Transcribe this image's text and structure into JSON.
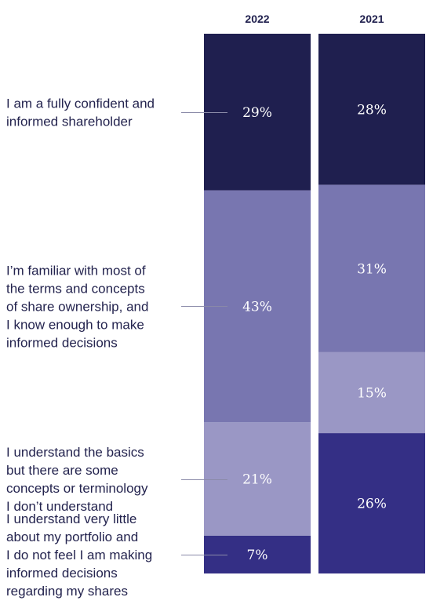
{
  "chart_data": {
    "type": "bar",
    "stacked": true,
    "normalized": "percent",
    "categories": [
      "2022",
      "2021"
    ],
    "series": [
      {
        "name": "I am a fully confident and informed shareholder",
        "label_lines": [
          "I am a fully confident and",
          "informed shareholder"
        ],
        "values": [
          29,
          28
        ],
        "value_labels": [
          "29%",
          "28%"
        ],
        "color": "#1f1f4f"
      },
      {
        "name": "I'm familiar with most of the terms and concepts of share ownership, and I know enough to make informed decisions",
        "label_lines": [
          "I’m familiar with most of",
          "the terms and concepts",
          "of share ownership, and",
          "I know enough to make",
          "informed decisions"
        ],
        "values": [
          43,
          31
        ],
        "value_labels": [
          "43%",
          "31%"
        ],
        "color": "#7876b0"
      },
      {
        "name": "I understand the basics but there are some concepts or terminology I don't understand",
        "label_lines": [
          "I understand the basics",
          "but there are some",
          "concepts or terminology",
          "I don’t understand"
        ],
        "values": [
          21,
          15
        ],
        "value_labels": [
          "21%",
          "15%"
        ],
        "color": "#9a97c5"
      },
      {
        "name": "I understand very little about my portfolio and I do not feel I am making informed decisions regarding my shares",
        "label_lines": [
          "I understand very little",
          "about my portfolio and",
          "I do not feel I am making",
          "informed decisions",
          "regarding my shares"
        ],
        "values": [
          7,
          26
        ],
        "value_labels": [
          "7%",
          "26%"
        ],
        "color": "#342f85"
      }
    ],
    "legend": "left",
    "grid": false
  }
}
